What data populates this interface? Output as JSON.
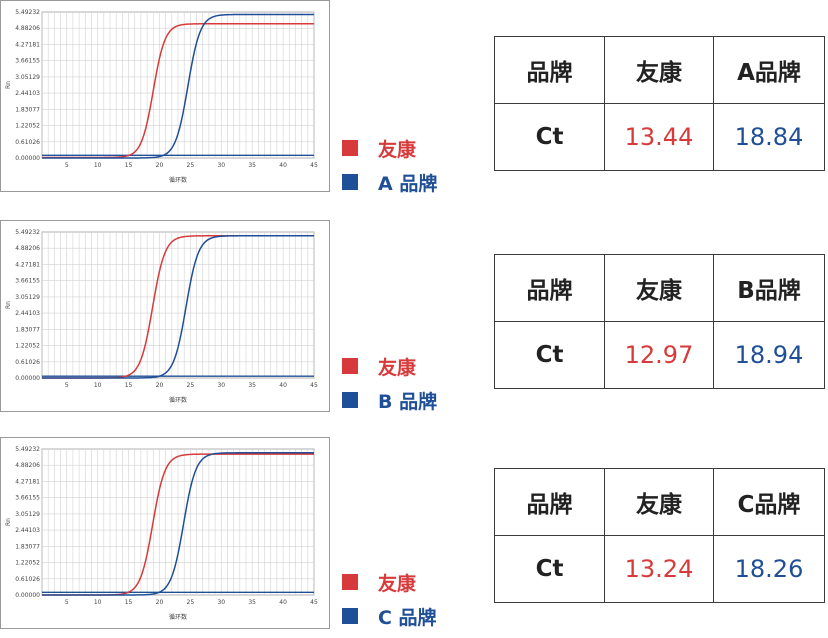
{
  "colors": {
    "youkang": "#d63a3a",
    "brand": "#1f4f96"
  },
  "panels": [
    {
      "legend": [
        {
          "label": "友康",
          "color": "#d63a3a"
        },
        {
          "label": "A 品牌",
          "color": "#1f4f96"
        }
      ],
      "table": {
        "headers": [
          "品牌",
          "友康",
          "A品牌"
        ],
        "row": [
          "Ct",
          "13.44",
          "18.84"
        ]
      },
      "chart_data": {
        "type": "line",
        "xlabel": "循环数",
        "ylabel": "Rn",
        "xlim": [
          1,
          45
        ],
        "ylim": [
          0,
          5.49232
        ],
        "xticks": [
          5,
          10,
          15,
          20,
          25,
          30,
          35,
          40,
          45
        ],
        "yticks": [
          0,
          0.61026,
          1.22052,
          1.83077,
          2.44103,
          3.05129,
          3.66155,
          4.27181,
          4.88206,
          5.49232
        ],
        "ytick_labels": [
          "0.00000",
          "0.61026",
          "1.22052",
          "1.83077",
          "2.44103",
          "3.05129",
          "3.66155",
          "4.27181",
          "4.88206",
          "5.49232"
        ],
        "threshold": 0.1,
        "series": [
          {
            "name": "友康",
            "color": "#d63a3a",
            "midpoint": 19.0,
            "slope": 1.05,
            "baseline": 0.02,
            "plateau": 5.05
          },
          {
            "name": "A 品牌",
            "color": "#1f4f96",
            "midpoint": 24.6,
            "slope": 1.0,
            "baseline": 0.0,
            "plateau": 5.4
          }
        ]
      }
    },
    {
      "legend": [
        {
          "label": "友康",
          "color": "#d63a3a"
        },
        {
          "label": "B 品牌",
          "color": "#1f4f96"
        }
      ],
      "table": {
        "headers": [
          "品牌",
          "友康",
          "B品牌"
        ],
        "row": [
          "Ct",
          "12.97",
          "18.94"
        ]
      },
      "chart_data": {
        "type": "line",
        "xlabel": "循环数",
        "ylabel": "Rn",
        "xlim": [
          1,
          45
        ],
        "ylim": [
          0,
          5.49232
        ],
        "xticks": [
          5,
          10,
          15,
          20,
          25,
          30,
          35,
          40,
          45
        ],
        "yticks": [
          0,
          0.61026,
          1.22052,
          1.83077,
          2.44103,
          3.05129,
          3.66155,
          4.27181,
          4.88206,
          5.49232
        ],
        "ytick_labels": [
          "0.00000",
          "0.61026",
          "1.22052",
          "1.83077",
          "2.44103",
          "3.05129",
          "3.66155",
          "4.27181",
          "4.88206",
          "5.49232"
        ],
        "threshold": 0.07,
        "series": [
          {
            "name": "友康",
            "color": "#d63a3a",
            "midpoint": 18.9,
            "slope": 1.0,
            "baseline": 0.0,
            "plateau": 5.35
          },
          {
            "name": "B 品牌",
            "color": "#1f4f96",
            "midpoint": 24.3,
            "slope": 1.0,
            "baseline": 0.0,
            "plateau": 5.35
          }
        ]
      }
    },
    {
      "legend": [
        {
          "label": "友康",
          "color": "#d63a3a"
        },
        {
          "label": "C 品牌",
          "color": "#1f4f96"
        }
      ],
      "table": {
        "headers": [
          "品牌",
          "友康",
          "C品牌"
        ],
        "row": [
          "Ct",
          "13.24",
          "18.26"
        ]
      },
      "chart_data": {
        "type": "line",
        "xlabel": "循环数",
        "ylabel": "Rn",
        "xlim": [
          1,
          45
        ],
        "ylim": [
          0,
          5.49232
        ],
        "xticks": [
          5,
          10,
          15,
          20,
          25,
          30,
          35,
          40,
          45
        ],
        "yticks": [
          0,
          0.61026,
          1.22052,
          1.83077,
          2.44103,
          3.05129,
          3.66155,
          4.27181,
          4.88206,
          5.49232
        ],
        "ytick_labels": [
          "0.00000",
          "0.61026",
          "1.22052",
          "1.83077",
          "2.44103",
          "3.05129",
          "3.66155",
          "4.27181",
          "4.88206",
          "5.49232"
        ],
        "threshold": 0.1,
        "series": [
          {
            "name": "友康",
            "color": "#d63a3a",
            "midpoint": 18.9,
            "slope": 1.0,
            "baseline": 0.0,
            "plateau": 5.3
          },
          {
            "name": "C 品牌",
            "color": "#1f4f96",
            "midpoint": 23.9,
            "slope": 1.0,
            "baseline": 0.0,
            "plateau": 5.35
          }
        ]
      }
    }
  ]
}
